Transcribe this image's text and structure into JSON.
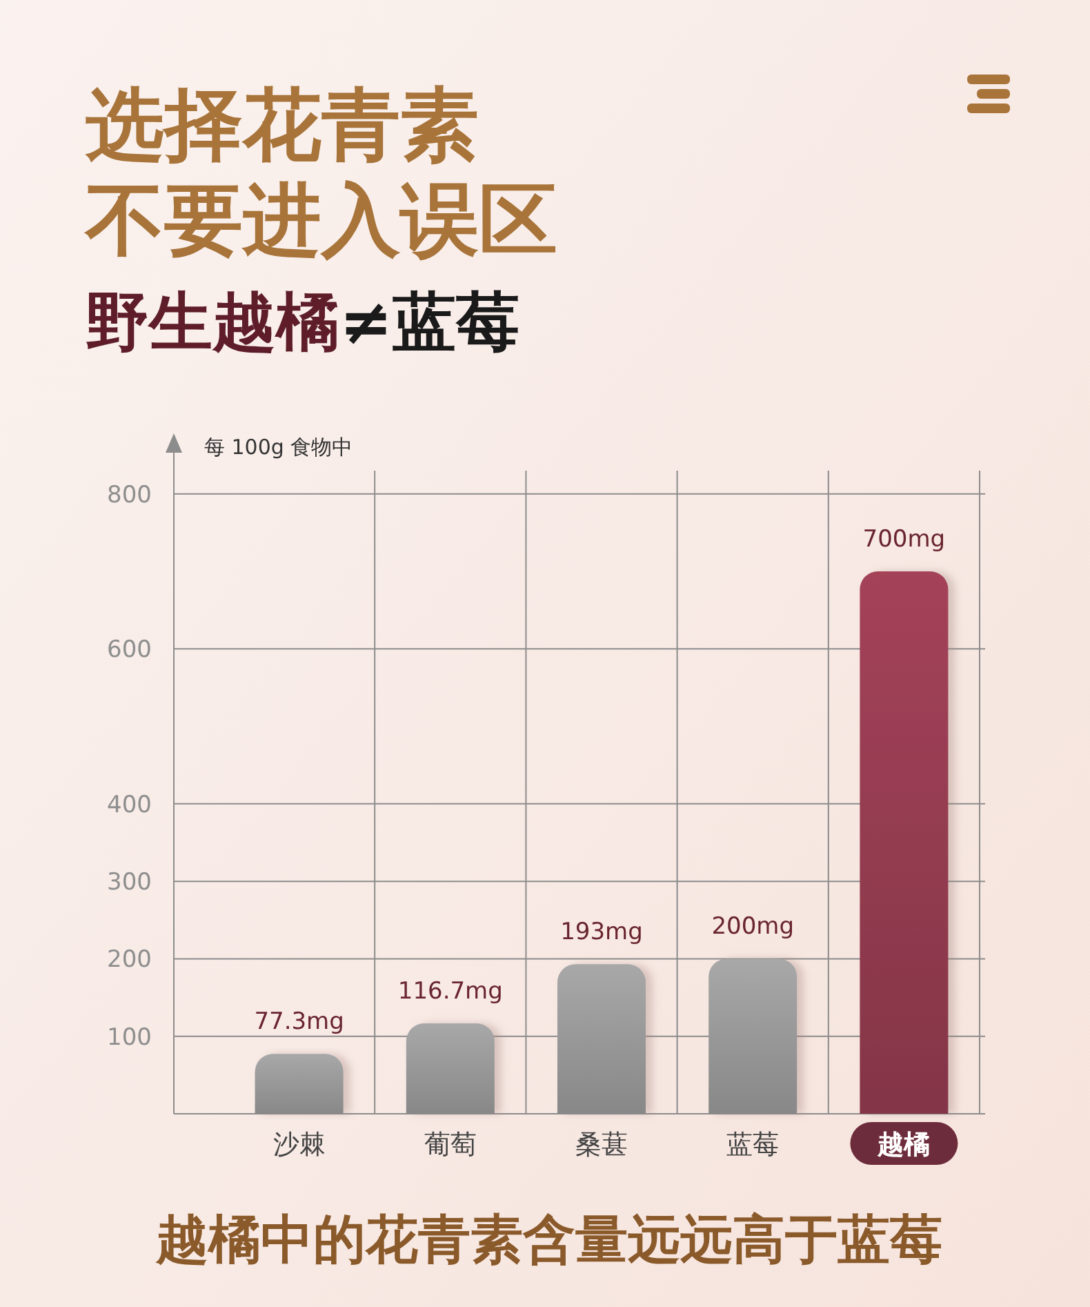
{
  "chart_data": {
    "type": "bar",
    "title": "选择花青素不要进入误区",
    "subtitle": "野生越橘≠蓝莓",
    "ylabel": "每 100g 食物中",
    "annotations": [
      "越橘中的花青素含量远远高于蓝莓"
    ],
    "categories": [
      "沙棘",
      "葡萄",
      "桑葚",
      "蓝莓",
      "越橘"
    ],
    "values": [
      77.3,
      116.7,
      193,
      200,
      700
    ],
    "value_labels": [
      "77.3mg",
      "116.7mg",
      "193mg",
      "200mg",
      "700mg"
    ],
    "colors": [
      "#9a9a9a",
      "#9a9a9a",
      "#9a9a9a",
      "#9a9a9a",
      "#963c51"
    ],
    "ylim": [
      0,
      830
    ],
    "yticks": [
      100,
      200,
      300,
      400,
      600,
      800
    ],
    "grid": true
  }
}
